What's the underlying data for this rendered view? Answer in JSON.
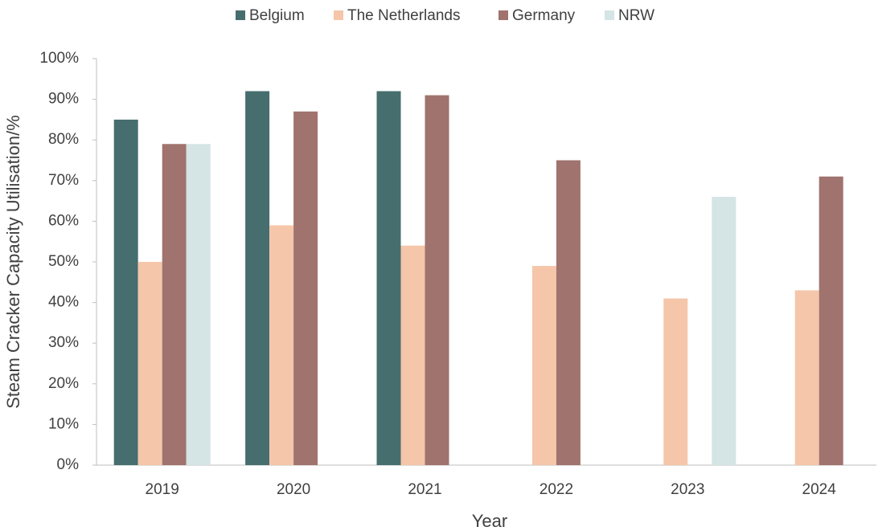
{
  "chart_data": {
    "type": "bar",
    "x_label": "Year",
    "y_label": "Steam Cracker Capacity Utilisation/%",
    "categories": [
      "2019",
      "2020",
      "2021",
      "2022",
      "2023",
      "2024"
    ],
    "series": [
      {
        "name": "Belgium",
        "color": "#466e6e",
        "values": [
          85,
          92,
          92,
          null,
          null,
          null
        ]
      },
      {
        "name": "The Netherlands",
        "color": "#f5c6aa",
        "values": [
          50,
          59,
          54,
          49,
          41,
          43
        ]
      },
      {
        "name": "Germany",
        "color": "#a0736e",
        "values": [
          79,
          87,
          91,
          75,
          null,
          71
        ]
      },
      {
        "name": "NRW",
        "color": "#d5e4e4",
        "values": [
          79,
          null,
          null,
          null,
          66,
          null
        ]
      }
    ],
    "ylim": [
      0,
      100
    ],
    "yticks": [
      {
        "value": 0,
        "label": "0%"
      },
      {
        "value": 10,
        "label": "10%"
      },
      {
        "value": 20,
        "label": "20%"
      },
      {
        "value": 30,
        "label": "30%"
      },
      {
        "value": 40,
        "label": "40%"
      },
      {
        "value": 50,
        "label": "50%"
      },
      {
        "value": 60,
        "label": "60%"
      },
      {
        "value": 70,
        "label": "70%"
      },
      {
        "value": 80,
        "label": "80%"
      },
      {
        "value": 90,
        "label": "90%"
      },
      {
        "value": 100,
        "label": "100%"
      }
    ],
    "grid": false,
    "legend": "top"
  }
}
